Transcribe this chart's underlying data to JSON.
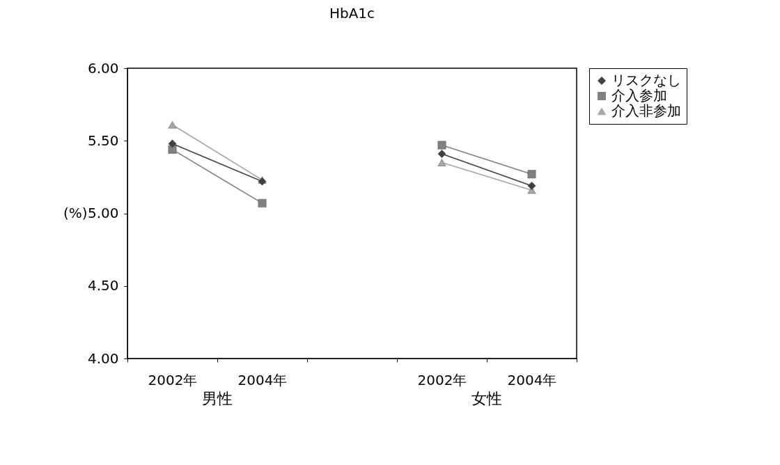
{
  "chart_data": {
    "type": "line",
    "title": "HbA1c",
    "ylabel": "(%)",
    "categories": [
      "2002年",
      "2004年",
      null,
      "2002年",
      "2004年"
    ],
    "series": [
      {
        "name": "リスクなし",
        "color": "#404040",
        "marker": "diamond",
        "values": [
          5.48,
          5.22,
          null,
          5.41,
          5.19
        ]
      },
      {
        "name": "介入参加",
        "color": "#808080",
        "marker": "square",
        "values": [
          5.44,
          5.07,
          null,
          5.47,
          5.27
        ]
      },
      {
        "name": "介入非参加",
        "color": "#a6a6a6",
        "marker": "triangle",
        "values": [
          5.61,
          5.23,
          null,
          5.35,
          5.16
        ]
      }
    ],
    "ylim": [
      4,
      6
    ],
    "yticks": [
      {
        "value": 4,
        "label": "4.00"
      },
      {
        "value": 4.5,
        "label": "4.50"
      },
      {
        "value": 5,
        "label": "5.00"
      },
      {
        "value": 5.5,
        "label": "5.50"
      },
      {
        "value": 6,
        "label": "6.00"
      }
    ],
    "annotations": [
      "男性",
      "女性"
    ],
    "grid": false,
    "legend": "right"
  }
}
